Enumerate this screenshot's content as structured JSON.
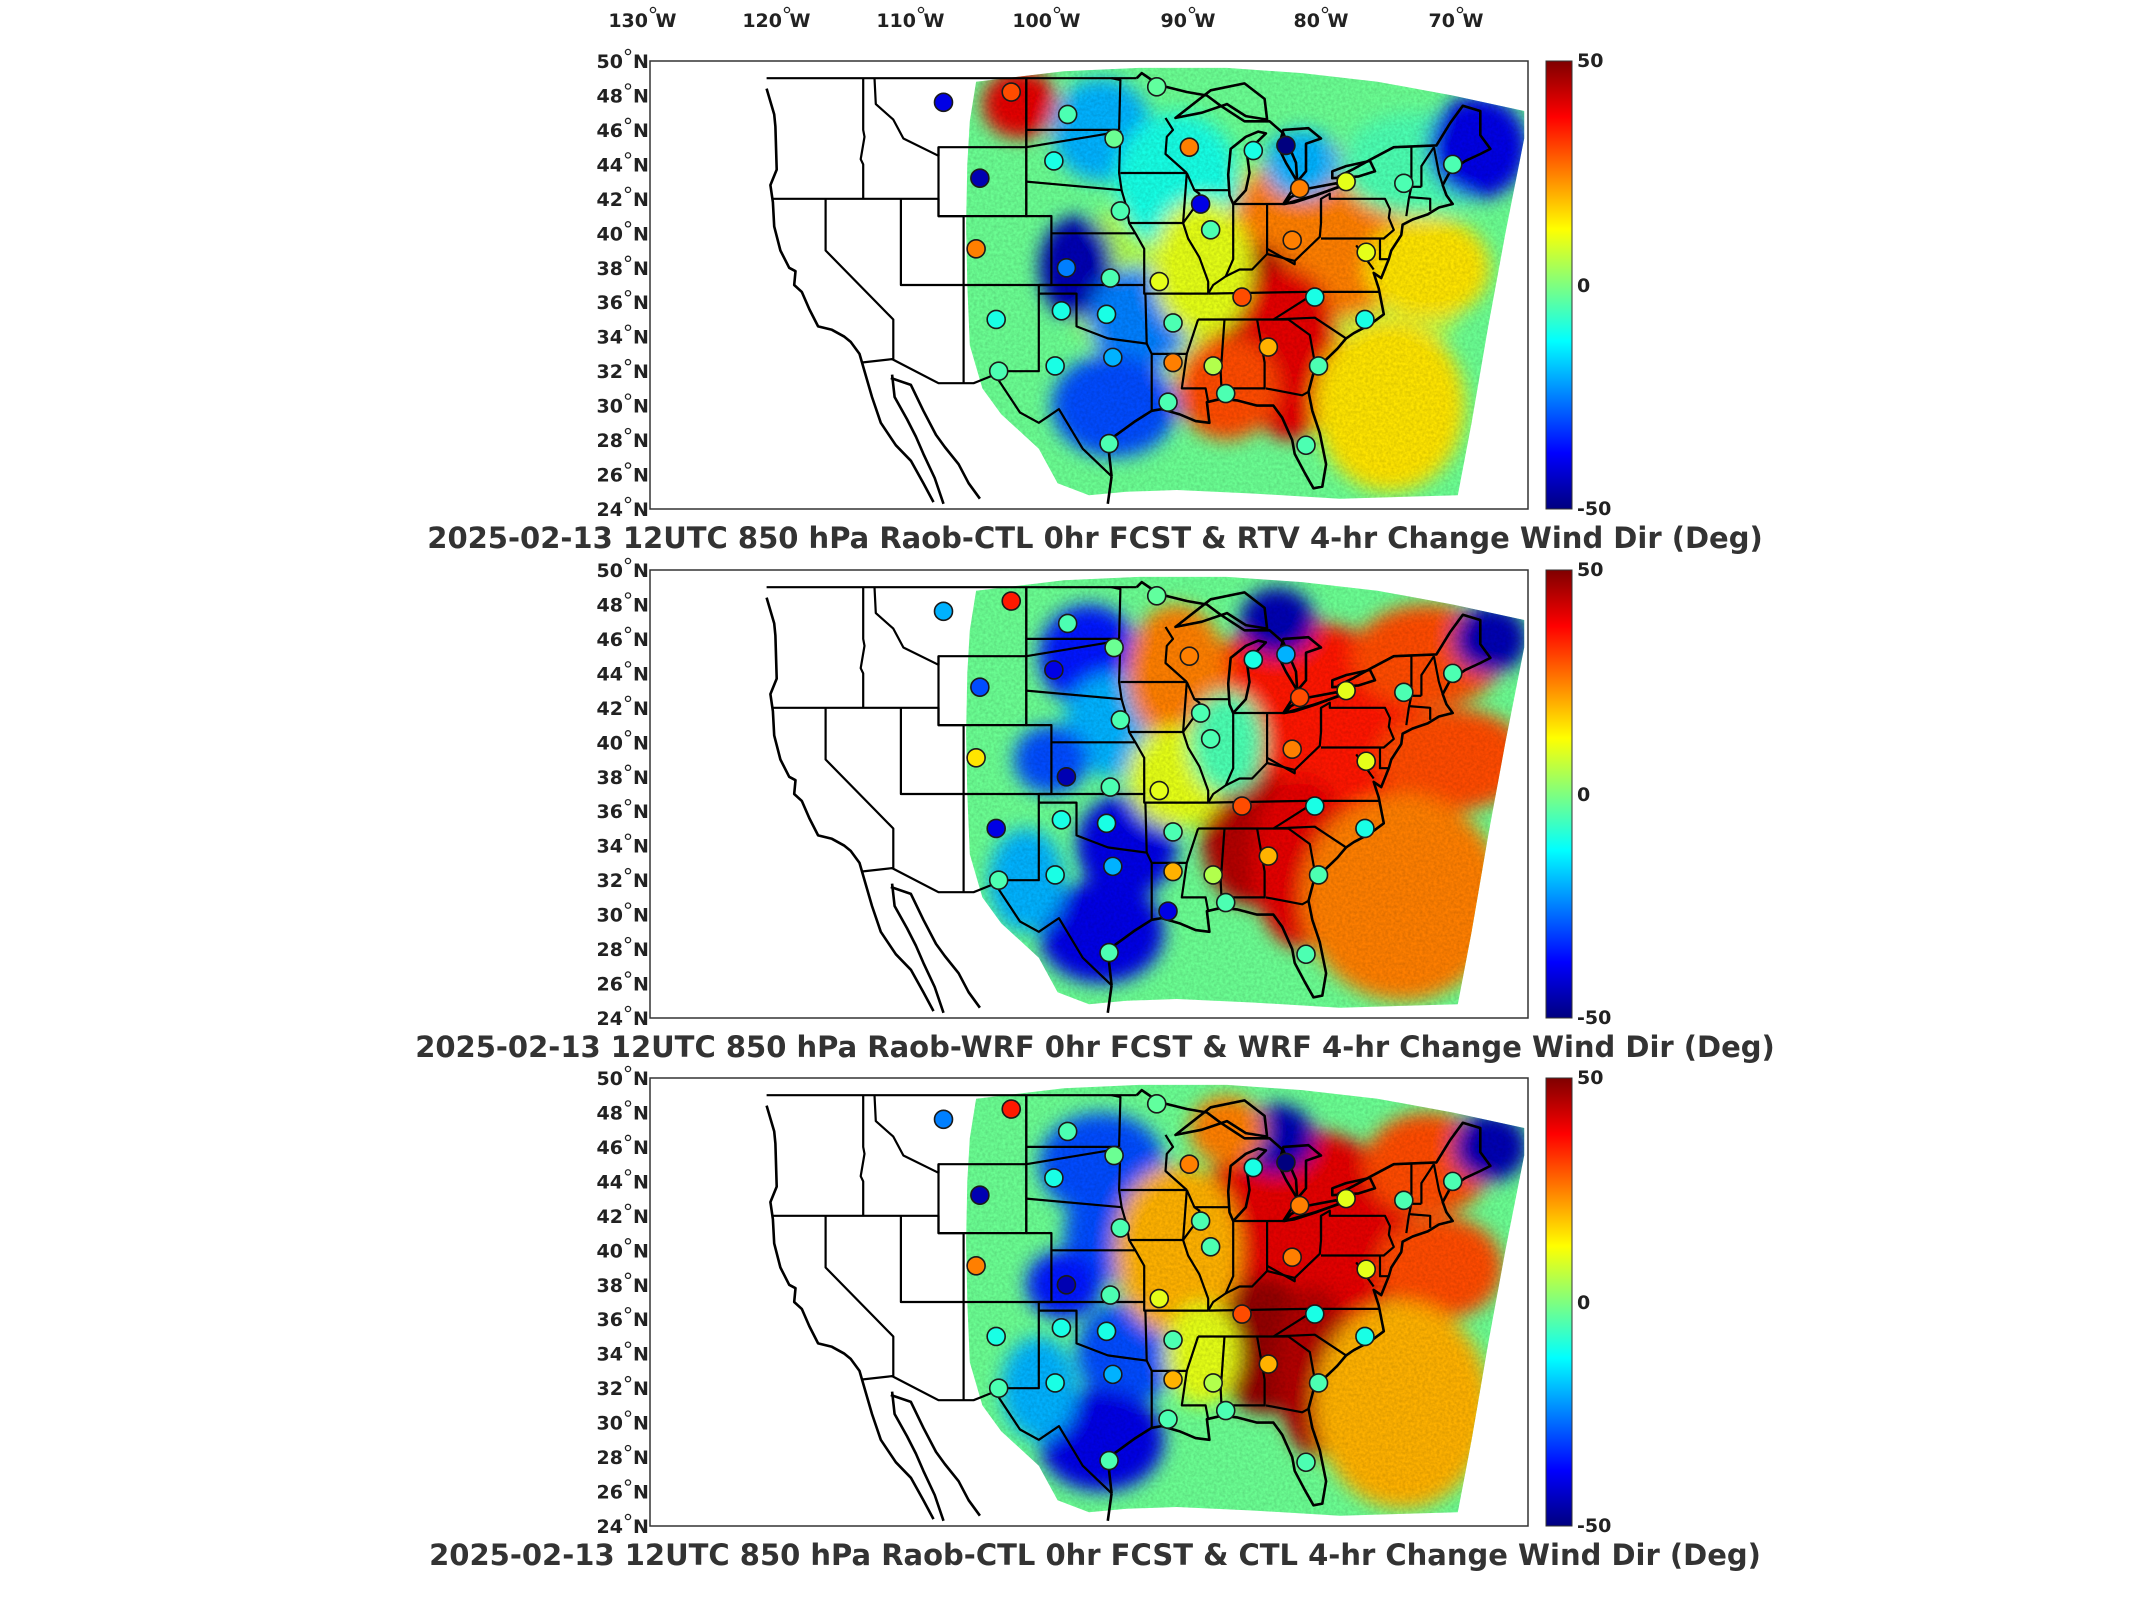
{
  "lon_ticks": [
    {
      "value": -130,
      "label": "130",
      "hem": "W"
    },
    {
      "value": -120,
      "label": "120",
      "hem": "W"
    },
    {
      "value": -110,
      "label": "110",
      "hem": "W"
    },
    {
      "value": -100,
      "label": "100",
      "hem": "W"
    },
    {
      "value": -90,
      "label": "90",
      "hem": "W"
    },
    {
      "value": -80,
      "label": "80",
      "hem": "W"
    },
    {
      "value": -70,
      "label": "70",
      "hem": "W"
    }
  ],
  "lat_ticks": [
    {
      "value": 50,
      "label": "50",
      "hem": "N"
    },
    {
      "value": 48,
      "label": "48",
      "hem": "N"
    },
    {
      "value": 46,
      "label": "46",
      "hem": "N"
    },
    {
      "value": 44,
      "label": "44",
      "hem": "N"
    },
    {
      "value": 42,
      "label": "42",
      "hem": "N"
    },
    {
      "value": 40,
      "label": "40",
      "hem": "N"
    },
    {
      "value": 38,
      "label": "38",
      "hem": "N"
    },
    {
      "value": 36,
      "label": "36",
      "hem": "N"
    },
    {
      "value": 34,
      "label": "34",
      "hem": "N"
    },
    {
      "value": 32,
      "label": "32",
      "hem": "N"
    },
    {
      "value": 30,
      "label": "30",
      "hem": "N"
    },
    {
      "value": 28,
      "label": "28",
      "hem": "N"
    },
    {
      "value": 26,
      "label": "26",
      "hem": "N"
    },
    {
      "value": 24,
      "label": "24",
      "hem": "N"
    }
  ],
  "colorbar": {
    "max_label": "50",
    "mid_label": "0",
    "min_label": "-50",
    "colormap": [
      "#00007f",
      "#0000ff",
      "#007fff",
      "#00ffff",
      "#7fff7f",
      "#ffff00",
      "#ff7f00",
      "#ff0000",
      "#7f0000"
    ]
  },
  "panels": [
    {
      "id": "rtv",
      "title": "2025-02-13 12UTC 850 hPa Raob-CTL 0hr FCST & RTV 4-hr Change Wind Dir (Deg)"
    },
    {
      "id": "wrf",
      "title": "2025-02-13 12UTC 850 hPa Raob-WRF 0hr FCST & WRF 4-hr Change Wind Dir (Deg)"
    },
    {
      "id": "ctl",
      "title": "2025-02-13 12UTC 850 hPa Raob-CTL 0hr FCST & CTL 4-hr Change Wind Dir (Deg)"
    }
  ],
  "chart_data": {
    "type": "heatmap",
    "variable": "4-hr Change Wind Dir (Deg)",
    "clim": [
      -50,
      50
    ],
    "lon_range": [
      -134,
      -64
    ],
    "lat_range": [
      24,
      50
    ],
    "raob_stations": [
      {
        "lon": -110.6,
        "lat": 47.6,
        "values": [
          -40,
          -20,
          -25
        ]
      },
      {
        "lon": -105.2,
        "lat": 48.2,
        "values": [
          30,
          35,
          35
        ]
      },
      {
        "lon": -107.7,
        "lat": 43.2,
        "values": [
          -45,
          -30,
          -45
        ]
      },
      {
        "lon": -100.7,
        "lat": 46.9,
        "values": [
          -5,
          -5,
          -5
        ]
      },
      {
        "lon": -97.0,
        "lat": 45.5,
        "values": [
          -2,
          -2,
          -2
        ]
      },
      {
        "lon": -93.6,
        "lat": 48.5,
        "values": [
          -3,
          -3,
          -3
        ]
      },
      {
        "lon": -91.0,
        "lat": 45.0,
        "values": [
          25,
          25,
          25
        ]
      },
      {
        "lon": -85.9,
        "lat": 44.8,
        "values": [
          -10,
          -10,
          -10
        ]
      },
      {
        "lon": -83.3,
        "lat": 45.1,
        "values": [
          -50,
          -20,
          -50
        ]
      },
      {
        "lon": -101.8,
        "lat": 44.2,
        "values": [
          -10,
          -40,
          -10
        ]
      },
      {
        "lon": -108.0,
        "lat": 39.1,
        "values": [
          25,
          15,
          25
        ]
      },
      {
        "lon": -96.5,
        "lat": 41.3,
        "values": [
          -5,
          -5,
          -5
        ]
      },
      {
        "lon": -89.3,
        "lat": 40.2,
        "values": [
          -5,
          -5,
          -5
        ]
      },
      {
        "lon": -90.1,
        "lat": 41.7,
        "values": [
          -40,
          -5,
          -5
        ]
      },
      {
        "lon": -82.2,
        "lat": 42.6,
        "values": [
          25,
          30,
          25
        ]
      },
      {
        "lon": -78.5,
        "lat": 43.0,
        "values": [
          10,
          10,
          10
        ]
      },
      {
        "lon": -73.9,
        "lat": 42.9,
        "values": [
          -5,
          -5,
          -5
        ]
      },
      {
        "lon": -70.0,
        "lat": 44.0,
        "values": [
          -5,
          -5,
          -5
        ]
      },
      {
        "lon": -82.8,
        "lat": 39.6,
        "values": [
          25,
          25,
          25
        ]
      },
      {
        "lon": -97.3,
        "lat": 37.4,
        "values": [
          -5,
          -5,
          -5
        ]
      },
      {
        "lon": -93.4,
        "lat": 37.2,
        "values": [
          10,
          10,
          10
        ]
      },
      {
        "lon": -101.2,
        "lat": 35.5,
        "values": [
          -10,
          -10,
          -10
        ]
      },
      {
        "lon": -100.8,
        "lat": 38.0,
        "values": [
          -25,
          -45,
          -45
        ]
      },
      {
        "lon": -106.4,
        "lat": 35.0,
        "values": [
          -10,
          -40,
          -10
        ]
      },
      {
        "lon": -97.6,
        "lat": 35.3,
        "values": [
          -10,
          -10,
          -10
        ]
      },
      {
        "lon": -92.3,
        "lat": 34.8,
        "values": [
          -5,
          -5,
          -5
        ]
      },
      {
        "lon": -86.8,
        "lat": 36.3,
        "values": [
          30,
          30,
          30
        ]
      },
      {
        "lon": -84.7,
        "lat": 33.4,
        "values": [
          20,
          20,
          20
        ]
      },
      {
        "lon": -81.0,
        "lat": 36.3,
        "values": [
          -10,
          -10,
          -10
        ]
      },
      {
        "lon": -76.9,
        "lat": 38.9,
        "values": [
          10,
          10,
          10
        ]
      },
      {
        "lon": -77.0,
        "lat": 35.0,
        "values": [
          -10,
          -10,
          -10
        ]
      },
      {
        "lon": -80.7,
        "lat": 32.3,
        "values": [
          -5,
          -5,
          -5
        ]
      },
      {
        "lon": -97.1,
        "lat": 32.8,
        "values": [
          -20,
          -20,
          -20
        ]
      },
      {
        "lon": -101.7,
        "lat": 32.3,
        "values": [
          -10,
          -10,
          -10
        ]
      },
      {
        "lon": -92.3,
        "lat": 32.5,
        "values": [
          25,
          20,
          20
        ]
      },
      {
        "lon": -89.1,
        "lat": 32.3,
        "values": [
          5,
          5,
          5
        ]
      },
      {
        "lon": -106.2,
        "lat": 32.0,
        "values": [
          -5,
          -5,
          -5
        ]
      },
      {
        "lon": -97.4,
        "lat": 27.8,
        "values": [
          -5,
          -5,
          -5
        ]
      },
      {
        "lon": -92.7,
        "lat": 30.2,
        "values": [
          -5,
          -40,
          -5
        ]
      },
      {
        "lon": -88.1,
        "lat": 30.7,
        "values": [
          -5,
          -5,
          -5
        ]
      },
      {
        "lon": -81.7,
        "lat": 27.7,
        "values": [
          -5,
          -5,
          -5
        ]
      }
    ]
  }
}
